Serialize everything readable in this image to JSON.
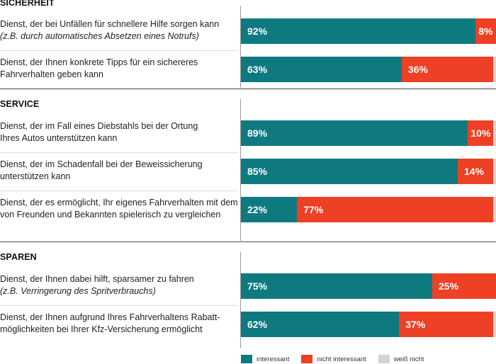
{
  "colors": {
    "interessant": "#0e7a7f",
    "nicht_interessant": "#ee4025",
    "weiss_nicht": "#d3d3d3"
  },
  "chart_data": {
    "type": "bar",
    "orientation": "horizontal",
    "stacked": true,
    "value_unit": "%",
    "xlim": [
      0,
      100
    ],
    "legend": {
      "position": "bottom"
    },
    "series": [
      {
        "key": "interessant",
        "name": "interessant"
      },
      {
        "key": "nicht_interessant",
        "name": "nicht interessant"
      },
      {
        "key": "weiss_nicht",
        "name": "weiß nicht"
      }
    ],
    "sections": [
      {
        "title": "SICHERHEIT",
        "items": [
          {
            "label": [
              "Dienst, der bei Unfällen für schnellere Hilfe sorgen kann"
            ],
            "note": "(z.B. durch automatisches Absetzen eines Notrufs)",
            "values": [
              92,
              8,
              0
            ]
          },
          {
            "label": [
              "Dienst, der Ihnen konkrete Tipps für ein sichereres",
              "Fahrverhalten geben kann"
            ],
            "note": "",
            "values": [
              63,
              36,
              1
            ]
          }
        ]
      },
      {
        "title": "SERVICE",
        "items": [
          {
            "label": [
              "Dienst, der im Fall eines Diebstahls bei der Ortung",
              "Ihres Autos unterstützen kann"
            ],
            "note": "",
            "values": [
              89,
              10,
              1
            ]
          },
          {
            "label": [
              "Dienst, der im Schadenfall bei der Beweissicherung",
              "unterstützen kann"
            ],
            "note": "",
            "values": [
              85,
              14,
              1
            ]
          },
          {
            "label": [
              "Dienst, der es ermöglicht, Ihr eigenes Fahrverhalten mit dem",
              "von Freunden und Bekannten spielerisch zu vergleichen"
            ],
            "note": "",
            "values": [
              22,
              77,
              1
            ]
          }
        ]
      },
      {
        "title": "SPAREN",
        "items": [
          {
            "label": [
              "Dienst, der Ihnen dabei hilft, sparsamer zu fahren"
            ],
            "note": "(z.B. Verringerung des Spritverbrauchs)",
            "values": [
              75,
              25,
              0
            ]
          },
          {
            "label": [
              "Dienst, der Ihnen aufgrund Ihres Fahrverhaltens Rabatt-",
              "möglichkeiten bei Ihrer Kfz-Versicherung ermöglicht"
            ],
            "note": "",
            "values": [
              62,
              37,
              1
            ]
          }
        ]
      }
    ]
  }
}
